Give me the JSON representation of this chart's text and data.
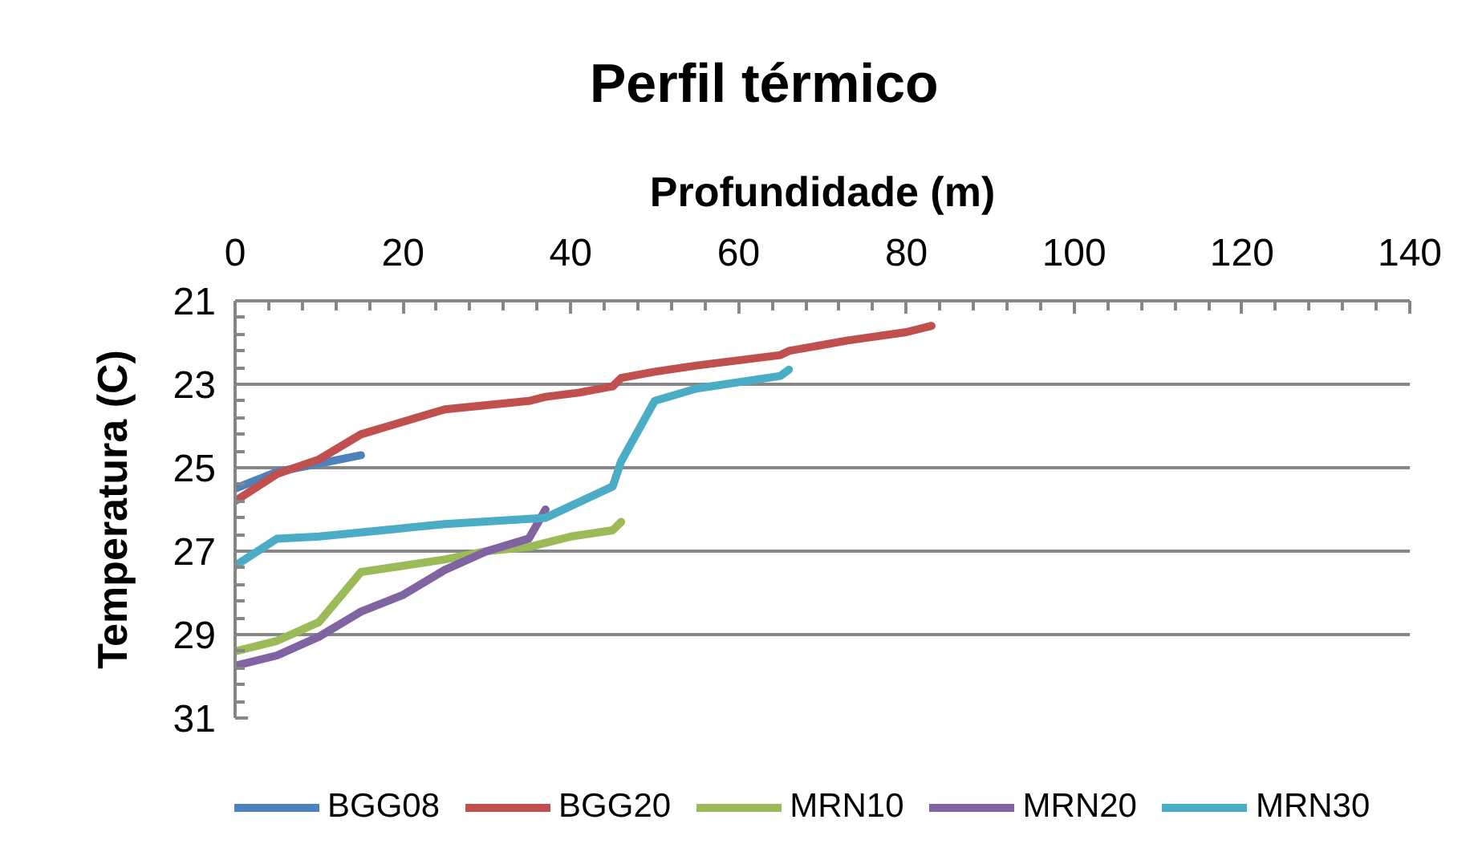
{
  "chart_data": {
    "type": "line",
    "title": "Perfil térmico",
    "xlabel": "Profundidade (m)",
    "ylabel": "Temperatura (C)",
    "xlim": [
      0,
      140
    ],
    "ylim": [
      31,
      21
    ],
    "xticks": [
      0,
      {
        "value": 4,
        "label": null
      },
      {
        "value": 8,
        "label": null
      },
      {
        "value": 12,
        "label": null
      },
      {
        "value": 16,
        "label": null
      },
      20,
      {
        "value": 24,
        "label": null
      },
      {
        "value": 28,
        "label": null
      },
      {
        "value": 32,
        "label": null
      },
      {
        "value": 36,
        "label": null
      },
      40,
      {
        "value": 44,
        "label": null
      },
      {
        "value": 48,
        "label": null
      },
      {
        "value": 52,
        "label": null
      },
      {
        "value": 56,
        "label": null
      },
      60,
      {
        "value": 64,
        "label": null
      },
      {
        "value": 68,
        "label": null
      },
      {
        "value": 72,
        "label": null
      },
      {
        "value": 76,
        "label": null
      },
      80,
      {
        "value": 84,
        "label": null
      },
      {
        "value": 88,
        "label": null
      },
      {
        "value": 92,
        "label": null
      },
      {
        "value": 96,
        "label": null
      },
      100,
      {
        "value": 104,
        "label": null
      },
      {
        "value": 108,
        "label": null
      },
      {
        "value": 112,
        "label": null
      },
      {
        "value": 116,
        "label": null
      },
      120,
      {
        "value": 124,
        "label": null
      },
      {
        "value": 128,
        "label": null
      },
      {
        "value": 132,
        "label": null
      },
      {
        "value": 136,
        "label": null
      },
      140
    ],
    "yticks": [
      21,
      {
        "value": 21.4,
        "label": null
      },
      {
        "value": 21.8,
        "label": null
      },
      {
        "value": 22.2,
        "label": null
      },
      {
        "value": 22.6,
        "label": null
      },
      23,
      {
        "value": 23.4,
        "label": null
      },
      {
        "value": 23.8,
        "label": null
      },
      {
        "value": 24.2,
        "label": null
      },
      {
        "value": 24.6,
        "label": null
      },
      25,
      {
        "value": 25.4,
        "label": null
      },
      {
        "value": 25.8,
        "label": null
      },
      {
        "value": 26.2,
        "label": null
      },
      {
        "value": 26.6,
        "label": null
      },
      27,
      {
        "value": 27.4,
        "label": null
      },
      {
        "value": 27.8,
        "label": null
      },
      {
        "value": 28.2,
        "label": null
      },
      {
        "value": 28.6,
        "label": null
      },
      29,
      {
        "value": 29.4,
        "label": null
      },
      {
        "value": 29.8,
        "label": null
      },
      {
        "value": 30.2,
        "label": null
      },
      {
        "value": 30.6,
        "label": null
      },
      31
    ],
    "grid": "y",
    "legend": "bottom",
    "line_style": "solid",
    "series": [
      {
        "name": "BGG08",
        "color": "#4f81bd",
        "x": [
          0,
          5,
          10,
          15
        ],
        "values": [
          25.5,
          25.1,
          24.9,
          24.7
        ]
      },
      {
        "name": "BGG20",
        "color": "#c0504d",
        "x": [
          0,
          5,
          10,
          15,
          20,
          25,
          30,
          35,
          37,
          41,
          45,
          46,
          50,
          55,
          65,
          66,
          73,
          80,
          83
        ],
        "values": [
          25.8,
          25.15,
          24.8,
          24.2,
          23.9,
          23.6,
          23.5,
          23.4,
          23.3,
          23.2,
          23.05,
          22.85,
          22.7,
          22.55,
          22.3,
          22.2,
          21.95,
          21.75,
          21.6
        ]
      },
      {
        "name": "MRN10",
        "color": "#9bbb59",
        "x": [
          0,
          5,
          10,
          15,
          20,
          25,
          30,
          35,
          40,
          45,
          46
        ],
        "values": [
          29.4,
          29.15,
          28.7,
          27.5,
          27.35,
          27.2,
          27.0,
          26.9,
          26.65,
          26.5,
          26.3
        ]
      },
      {
        "name": "MRN20",
        "color": "#8064a2",
        "x": [
          0,
          5,
          10,
          15,
          20,
          25,
          30,
          35,
          37
        ],
        "values": [
          29.75,
          29.5,
          29.05,
          28.45,
          28.05,
          27.45,
          27.0,
          26.7,
          26.0
        ]
      },
      {
        "name": "MRN30",
        "color": "#4bacc6",
        "x": [
          0,
          5,
          10,
          20,
          25,
          37,
          45,
          46,
          50,
          55,
          65,
          66
        ],
        "values": [
          27.35,
          26.7,
          26.65,
          26.45,
          26.35,
          26.2,
          25.45,
          24.85,
          23.4,
          23.1,
          22.8,
          22.65
        ]
      }
    ]
  }
}
